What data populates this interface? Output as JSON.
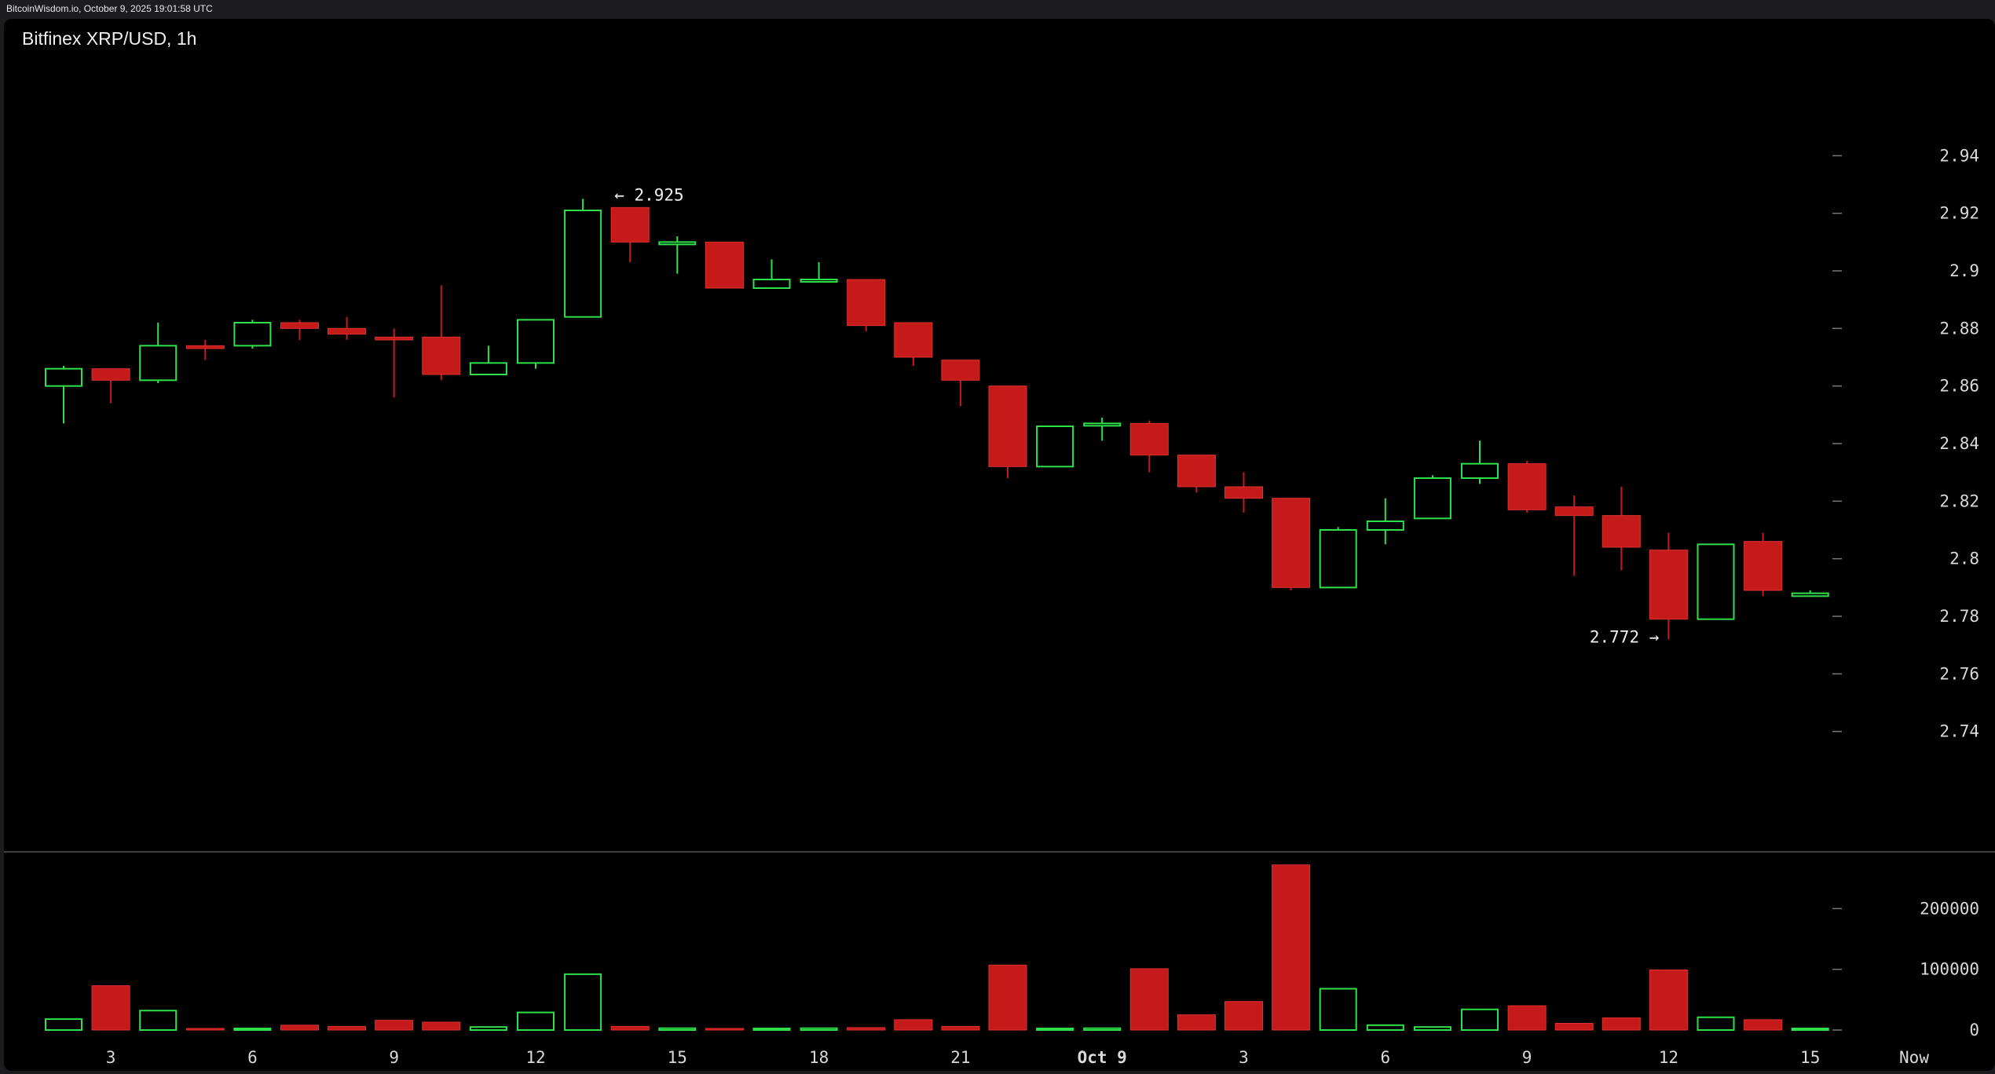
{
  "header": {
    "stamp": "BitcoinWisdom.io, October 9, 2025 19:01:58 UTC"
  },
  "colors": {
    "background": "#000000",
    "up": "#2ee04a",
    "down": "#c41a1a",
    "axis_text": "#d9d9d9",
    "separator": "#555555"
  },
  "chart_data": {
    "type": "candlestick",
    "title": "Bitfinex XRP/USD, 1h",
    "price_axis": {
      "ylim": [
        2.72,
        2.96
      ],
      "ticks": [
        "2.74",
        "2.76",
        "2.78",
        "2.8",
        "2.82",
        "2.84",
        "2.86",
        "2.88",
        "2.9",
        "2.92",
        "2.94"
      ]
    },
    "volume_axis": {
      "ylim": [
        0,
        300000
      ],
      "ticks": [
        "0",
        "100000",
        "200000"
      ]
    },
    "x_axis": {
      "labels": [
        {
          "text": "3",
          "index": 1
        },
        {
          "text": "6",
          "index": 4
        },
        {
          "text": "9",
          "index": 7
        },
        {
          "text": "12",
          "index": 10
        },
        {
          "text": "15",
          "index": 13
        },
        {
          "text": "18",
          "index": 16
        },
        {
          "text": "21",
          "index": 19
        },
        {
          "text": "Oct 9",
          "index": 22,
          "bold": true
        },
        {
          "text": "3",
          "index": 25
        },
        {
          "text": "6",
          "index": 28
        },
        {
          "text": "9",
          "index": 31
        },
        {
          "text": "12",
          "index": 34
        },
        {
          "text": "15",
          "index": 37
        },
        {
          "text": "Now",
          "index": 39
        }
      ]
    },
    "annotations": {
      "high": {
        "text": "← 2.925",
        "index": 12,
        "value": 2.925
      },
      "low": {
        "text": "2.772 →",
        "index": 34,
        "value": 2.772
      }
    },
    "candles": [
      {
        "o": 2.86,
        "h": 2.867,
        "l": 2.847,
        "c": 2.866,
        "v": 18000
      },
      {
        "o": 2.866,
        "h": 2.866,
        "l": 2.854,
        "c": 2.862,
        "v": 73000
      },
      {
        "o": 2.862,
        "h": 2.882,
        "l": 2.861,
        "c": 2.874,
        "v": 32000
      },
      {
        "o": 2.874,
        "h": 2.876,
        "l": 2.869,
        "c": 2.873,
        "v": 2000
      },
      {
        "o": 2.874,
        "h": 2.883,
        "l": 2.873,
        "c": 2.882,
        "v": 2000
      },
      {
        "o": 2.882,
        "h": 2.883,
        "l": 2.876,
        "c": 2.88,
        "v": 8000
      },
      {
        "o": 2.88,
        "h": 2.884,
        "l": 2.876,
        "c": 2.878,
        "v": 6000
      },
      {
        "o": 2.877,
        "h": 2.88,
        "l": 2.856,
        "c": 2.876,
        "v": 16000
      },
      {
        "o": 2.877,
        "h": 2.895,
        "l": 2.862,
        "c": 2.864,
        "v": 13000
      },
      {
        "o": 2.864,
        "h": 2.874,
        "l": 2.864,
        "c": 2.868,
        "v": 5000
      },
      {
        "o": 2.868,
        "h": 2.883,
        "l": 2.866,
        "c": 2.883,
        "v": 29000
      },
      {
        "o": 2.884,
        "h": 2.925,
        "l": 2.884,
        "c": 2.921,
        "v": 92000
      },
      {
        "o": 2.922,
        "h": 2.922,
        "l": 2.903,
        "c": 2.91,
        "v": 6000
      },
      {
        "o": 2.91,
        "h": 2.912,
        "l": 2.899,
        "c": 2.91,
        "v": 3000
      },
      {
        "o": 2.91,
        "h": 2.91,
        "l": 2.894,
        "c": 2.894,
        "v": 2000
      },
      {
        "o": 2.894,
        "h": 2.904,
        "l": 2.894,
        "c": 2.897,
        "v": 1000
      },
      {
        "o": 2.897,
        "h": 2.903,
        "l": 2.897,
        "c": 2.897,
        "v": 3000
      },
      {
        "o": 2.897,
        "h": 2.897,
        "l": 2.879,
        "c": 2.881,
        "v": 4000
      },
      {
        "o": 2.882,
        "h": 2.882,
        "l": 2.867,
        "c": 2.87,
        "v": 17000
      },
      {
        "o": 2.869,
        "h": 2.869,
        "l": 2.853,
        "c": 2.862,
        "v": 6000
      },
      {
        "o": 2.86,
        "h": 2.86,
        "l": 2.828,
        "c": 2.832,
        "v": 107000
      },
      {
        "o": 2.832,
        "h": 2.846,
        "l": 2.832,
        "c": 2.846,
        "v": 1000
      },
      {
        "o": 2.847,
        "h": 2.849,
        "l": 2.841,
        "c": 2.847,
        "v": 3000
      },
      {
        "o": 2.847,
        "h": 2.848,
        "l": 2.83,
        "c": 2.836,
        "v": 101000
      },
      {
        "o": 2.836,
        "h": 2.836,
        "l": 2.823,
        "c": 2.825,
        "v": 25000
      },
      {
        "o": 2.825,
        "h": 2.83,
        "l": 2.816,
        "c": 2.821,
        "v": 47000
      },
      {
        "o": 2.821,
        "h": 2.821,
        "l": 2.789,
        "c": 2.79,
        "v": 272000
      },
      {
        "o": 2.79,
        "h": 2.811,
        "l": 2.79,
        "c": 2.81,
        "v": 68000
      },
      {
        "o": 2.81,
        "h": 2.821,
        "l": 2.805,
        "c": 2.813,
        "v": 8000
      },
      {
        "o": 2.814,
        "h": 2.829,
        "l": 2.814,
        "c": 2.828,
        "v": 5000
      },
      {
        "o": 2.828,
        "h": 2.841,
        "l": 2.826,
        "c": 2.833,
        "v": 34000
      },
      {
        "o": 2.833,
        "h": 2.834,
        "l": 2.816,
        "c": 2.817,
        "v": 40000
      },
      {
        "o": 2.818,
        "h": 2.822,
        "l": 2.794,
        "c": 2.815,
        "v": 11000
      },
      {
        "o": 2.815,
        "h": 2.825,
        "l": 2.796,
        "c": 2.804,
        "v": 20000
      },
      {
        "o": 2.803,
        "h": 2.809,
        "l": 2.772,
        "c": 2.779,
        "v": 99000
      },
      {
        "o": 2.779,
        "h": 2.805,
        "l": 2.779,
        "c": 2.805,
        "v": 21000
      },
      {
        "o": 2.806,
        "h": 2.809,
        "l": 2.787,
        "c": 2.789,
        "v": 17000
      },
      {
        "o": 2.787,
        "h": 2.789,
        "l": 2.787,
        "c": 2.788,
        "v": 1000
      }
    ]
  }
}
